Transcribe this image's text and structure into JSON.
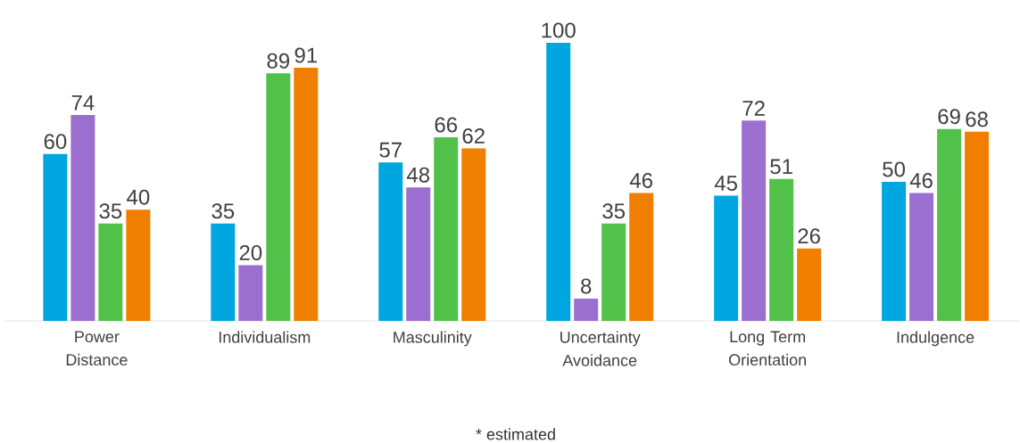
{
  "chart_data": {
    "type": "bar",
    "categories": [
      "Power Distance",
      "Individualism",
      "Masculinity",
      "Uncertainty Avoidance",
      "Long Term Orientation",
      "Indulgence"
    ],
    "series": [
      {
        "color": "#00a6e0",
        "values": [
          60,
          35,
          57,
          100,
          45,
          50
        ]
      },
      {
        "color": "#9b6fcf",
        "values": [
          74,
          20,
          48,
          8,
          72,
          46
        ]
      },
      {
        "color": "#52c14a",
        "values": [
          35,
          89,
          66,
          35,
          51,
          69
        ]
      },
      {
        "color": "#f07f00",
        "values": [
          40,
          91,
          62,
          46,
          26,
          68
        ]
      }
    ],
    "ylim": [
      0,
      100
    ],
    "data_labels": true,
    "annotations": [
      "* estimated"
    ]
  }
}
